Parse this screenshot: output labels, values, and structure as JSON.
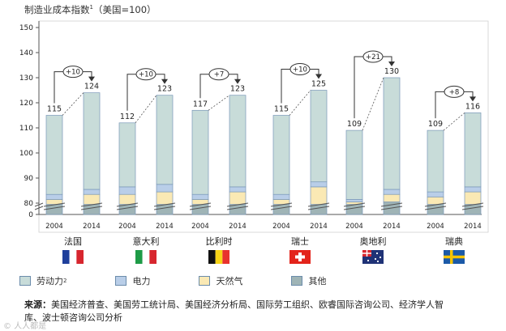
{
  "chart_data": {
    "type": "bar",
    "title": "制造业成本指数",
    "title_superscript": "1",
    "title_suffix": "（美国=100）",
    "categories": [
      "法国",
      "意大利",
      "比利时",
      "瑞士",
      "奥地利",
      "瑞典"
    ],
    "years": [
      "2004",
      "2014"
    ],
    "totals": [
      [
        115,
        124
      ],
      [
        112,
        123
      ],
      [
        117,
        123
      ],
      [
        115,
        125
      ],
      [
        109,
        130
      ],
      [
        109,
        116
      ]
    ],
    "changes": [
      "+10",
      "+10",
      "+7",
      "+10",
      "+21",
      "+8"
    ],
    "series": [
      {
        "name": "劳动力",
        "color": "#c8dcd9",
        "values": [
          [
            32,
            39
          ],
          [
            26,
            36
          ],
          [
            34,
            37
          ],
          [
            32,
            37
          ],
          [
            28,
            45
          ],
          [
            25,
            30
          ]
        ]
      },
      {
        "name": "电力",
        "color": "#b9cee8",
        "values": [
          [
            2,
            2
          ],
          [
            3,
            3
          ],
          [
            2,
            2
          ],
          [
            2,
            2
          ],
          [
            1,
            2
          ],
          [
            2,
            2
          ]
        ]
      },
      {
        "name": "天然气",
        "color": "#fae9b4",
        "values": [
          [
            2,
            4
          ],
          [
            4,
            5
          ],
          [
            2,
            5
          ],
          [
            2,
            7
          ],
          [
            1,
            3
          ],
          [
            3,
            5
          ]
        ]
      },
      {
        "name": "其他",
        "color": "#9fb4b6",
        "values": [
          [
            4,
            4
          ],
          [
            4,
            4
          ],
          [
            4,
            4
          ],
          [
            4,
            4
          ],
          [
            4,
            5
          ],
          [
            4,
            4
          ]
        ]
      }
    ],
    "y_ticks": [
      "0",
      "80",
      "90",
      "100",
      "110",
      "120",
      "130",
      "140",
      "150"
    ],
    "ylim": [
      0,
      150
    ],
    "axis_break": true,
    "grid": false,
    "legend_position": "bottom"
  },
  "flags": [
    {
      "country": "法国",
      "stripes": [
        "#1f3f9b",
        "#ffffff",
        "#d7262e"
      ],
      "orientation": "vertical"
    },
    {
      "country": "意大利",
      "stripes": [
        "#1e9b47",
        "#ffffff",
        "#d7262e"
      ],
      "orientation": "vertical"
    },
    {
      "country": "比利时",
      "stripes": [
        "#111111",
        "#f7d417",
        "#e8322d"
      ],
      "orientation": "vertical"
    },
    {
      "country": "瑞士",
      "design": "swiss-cross",
      "colors": [
        "#e3241b",
        "#ffffff"
      ]
    },
    {
      "country": "奥地利",
      "design": "southern-cross",
      "colors": [
        "#1f3276",
        "#d7262e",
        "#ffffff"
      ]
    },
    {
      "country": "瑞典",
      "design": "nordic-cross",
      "colors": [
        "#1b5aa8",
        "#f5c400"
      ]
    }
  ],
  "legend": {
    "labour": "劳动力",
    "labour_sup": "2",
    "electricity": "电力",
    "gas": "天然气",
    "other": "其他"
  },
  "source": {
    "label": "来源：",
    "text": "美国经济普查、美国劳工统计局、美国经济分析局、国际劳工组织、欧睿国际咨询公司、经济学人智库、波士顿咨询公司分析"
  },
  "watermark": "© 人人都是"
}
